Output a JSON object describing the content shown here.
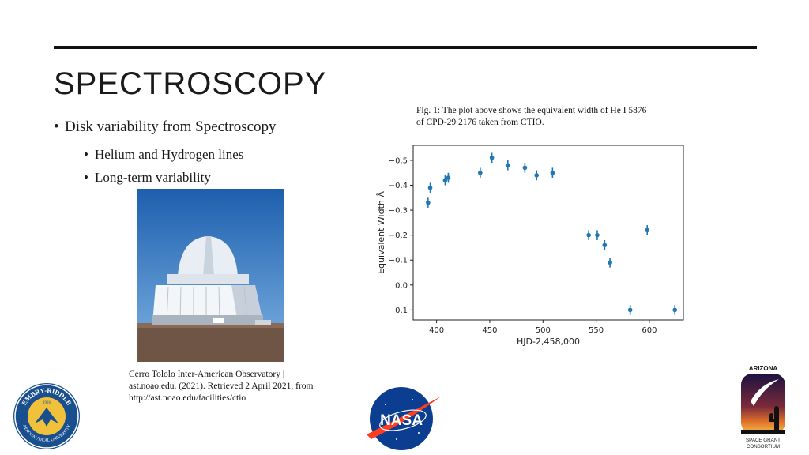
{
  "slide": {
    "title": "SPECTROSCOPY",
    "bullets": [
      {
        "text": "Disk variability from Spectroscopy",
        "level": 1
      },
      {
        "text": "Helium and Hydrogen lines",
        "level": 2
      },
      {
        "text": "Long-term variability",
        "level": 2
      }
    ],
    "photo_caption": {
      "line1": "Cerro Tololo Inter-American Observatory |",
      "line2": "ast.noao.edu. (2021). Retrieved 2 April 2021, from",
      "line3": "http://ast.noao.edu/facilities/ctio"
    },
    "figure_caption": {
      "line1": "Fig. 1: The plot above shows the equivalent width of He I 5876",
      "line2": "of CPD-29 2176 taken from CTIO."
    }
  },
  "logos": {
    "erau": {
      "top": "EMBRY-RIDDLE",
      "year": "1926",
      "bottom": "AERONAUTICAL UNIVERSITY"
    },
    "nasa": {
      "text": "NASA"
    },
    "asgc": {
      "top": "ARIZONA",
      "bottom1": "SPACE GRANT",
      "bottom2": "CONSORTIUM"
    }
  },
  "colors": {
    "accent": "#1f77b4",
    "text": "#1a1a1a"
  },
  "chart_data": {
    "type": "scatter",
    "title": "",
    "xlabel": "HJD-2,458,000",
    "ylabel": "Equivalent Width Å",
    "xlim": [
      378,
      632
    ],
    "ylim": [
      0.14,
      -0.56
    ],
    "y_inverted": true,
    "xticks": [
      400,
      450,
      500,
      550,
      600
    ],
    "xtick_labels": [
      "400",
      "450",
      "500",
      "550",
      "600"
    ],
    "yticks": [
      -0.5,
      -0.4,
      -0.3,
      -0.2,
      -0.1,
      0.0,
      0.1
    ],
    "ytick_labels": [
      "−0.5",
      "−0.4",
      "−0.3",
      "−0.2",
      "−0.1",
      "0.0",
      "0.1"
    ],
    "points": [
      {
        "x": 392,
        "y": -0.33,
        "err": 0.02
      },
      {
        "x": 394,
        "y": -0.39,
        "err": 0.02
      },
      {
        "x": 408,
        "y": -0.42,
        "err": 0.02
      },
      {
        "x": 411,
        "y": -0.43,
        "err": 0.02
      },
      {
        "x": 441,
        "y": -0.45,
        "err": 0.02
      },
      {
        "x": 452,
        "y": -0.51,
        "err": 0.02
      },
      {
        "x": 467,
        "y": -0.48,
        "err": 0.02
      },
      {
        "x": 483,
        "y": -0.47,
        "err": 0.02
      },
      {
        "x": 494,
        "y": -0.44,
        "err": 0.02
      },
      {
        "x": 509,
        "y": -0.45,
        "err": 0.02
      },
      {
        "x": 543,
        "y": -0.2,
        "err": 0.02
      },
      {
        "x": 551,
        "y": -0.2,
        "err": 0.02
      },
      {
        "x": 558,
        "y": -0.16,
        "err": 0.02
      },
      {
        "x": 563,
        "y": -0.09,
        "err": 0.02
      },
      {
        "x": 582,
        "y": 0.1,
        "err": 0.02
      },
      {
        "x": 598,
        "y": -0.22,
        "err": 0.02
      },
      {
        "x": 624,
        "y": 0.1,
        "err": 0.02
      }
    ]
  }
}
